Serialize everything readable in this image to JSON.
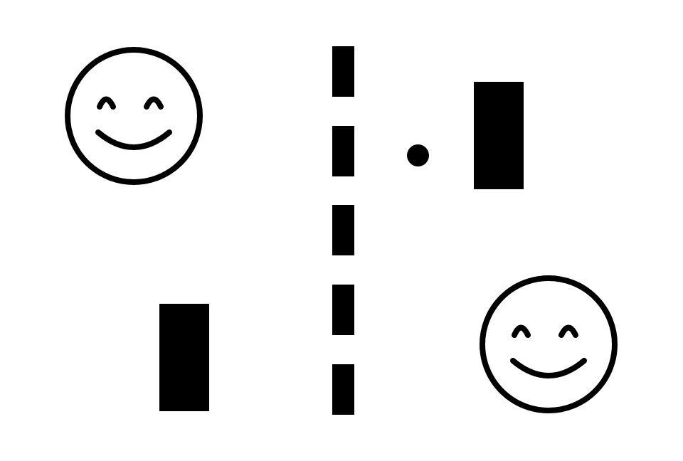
{
  "scene": {
    "background_color": "#ffffff",
    "foreground_color": "#000000"
  },
  "net": {
    "dash_count": 5,
    "style": "dashed"
  },
  "paddles": {
    "left": {
      "label": "",
      "shape": "rectangle"
    },
    "right": {
      "label": "",
      "shape": "rectangle"
    }
  },
  "ball": {
    "shape": "circle"
  },
  "players": {
    "left_icon": "smiley-face-icon",
    "right_icon": "smiley-face-icon"
  }
}
